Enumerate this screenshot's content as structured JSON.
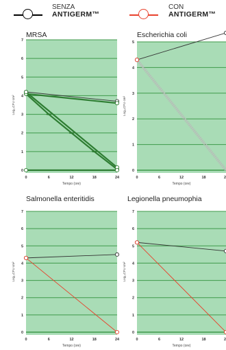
{
  "legend": {
    "without": {
      "line1": "SENZA",
      "line2": "ANTIGERM™",
      "color": "#000000"
    },
    "with": {
      "line1": "CON",
      "line2": "ANTIGERM™",
      "color": "#e8412c"
    }
  },
  "colors": {
    "plot_bg": "#a9dcb6",
    "grid": "#3f9a4a",
    "mrsa_line": "#2e7d32",
    "ecoli_dotted": "#b9b9b9",
    "with": "#e8412c",
    "without": "#333333"
  },
  "chart_data": [
    {
      "type": "line",
      "title": "MRSA",
      "xlabel": "Tempo (ore)",
      "ylabel": "Log₁₀CFU cm²",
      "x_ticks": [
        "0",
        "6",
        "12",
        "18",
        "24"
      ],
      "y_ticks": [
        "0",
        "1",
        "2",
        "3",
        "4",
        "5",
        "6",
        "7"
      ],
      "xlim": [
        0,
        24
      ],
      "ylim": [
        0,
        7
      ],
      "grid": true,
      "series": [
        {
          "style": "without",
          "x": [
            0,
            24
          ],
          "y": [
            4.2,
            3.7
          ]
        },
        {
          "style": "mrsa",
          "x": [
            0,
            24
          ],
          "y": [
            4.1,
            3.6
          ]
        },
        {
          "style": "mrsa",
          "x": [
            0,
            6,
            12,
            18,
            24
          ],
          "y": [
            4.1,
            3.0,
            2.0,
            1.0,
            0.05
          ]
        },
        {
          "style": "mrsa",
          "x": [
            0,
            24
          ],
          "y": [
            4.2,
            0.15
          ]
        },
        {
          "style": "mrsa",
          "x": [
            0,
            24
          ],
          "y": [
            0.0,
            0.0
          ]
        }
      ]
    },
    {
      "type": "line",
      "title": "Escherichia coli",
      "xlabel": "Tempo (ore)",
      "ylabel": "Log₁₀CFU cm²",
      "x_ticks": [
        "0",
        "6",
        "12",
        "18",
        "24"
      ],
      "y_ticks": [
        "0",
        "1",
        "2",
        "3",
        "4",
        "5"
      ],
      "xlim": [
        0,
        24
      ],
      "ylim": [
        0,
        5
      ],
      "grid": true,
      "series": [
        {
          "style": "without",
          "x": [
            0,
            24
          ],
          "y": [
            4.3,
            5.35
          ]
        },
        {
          "style": "ecoli_dotted",
          "x": [
            0,
            24
          ],
          "y": [
            4.3,
            0.0
          ]
        },
        {
          "style": "with",
          "x": [
            0
          ],
          "y": [
            4.3
          ]
        }
      ]
    },
    {
      "type": "line",
      "title": "Salmonella enteritidis",
      "xlabel": "Tempo (ore)",
      "ylabel": "Log₁₀CFU cm²",
      "x_ticks": [
        "0",
        "6",
        "12",
        "18",
        "24"
      ],
      "y_ticks": [
        "0",
        "1",
        "2",
        "3",
        "4",
        "5",
        "6",
        "7"
      ],
      "xlim": [
        0,
        24
      ],
      "ylim": [
        0,
        7
      ],
      "grid": true,
      "series": [
        {
          "style": "without",
          "x": [
            0,
            24
          ],
          "y": [
            4.3,
            4.5
          ]
        },
        {
          "style": "with",
          "x": [
            0,
            24
          ],
          "y": [
            4.3,
            0.0
          ]
        }
      ]
    },
    {
      "type": "line",
      "title": "Legionella pneumophia",
      "xlabel": "Tempo (ore)",
      "ylabel": "Log₁₀CFU cm²",
      "x_ticks": [
        "0",
        "6",
        "12",
        "18",
        "24"
      ],
      "y_ticks": [
        "0",
        "1",
        "2",
        "3",
        "4",
        "5",
        "6",
        "7"
      ],
      "xlim": [
        0,
        24
      ],
      "ylim": [
        0,
        7
      ],
      "grid": true,
      "series": [
        {
          "style": "without",
          "x": [
            0,
            24
          ],
          "y": [
            5.2,
            4.7
          ]
        },
        {
          "style": "with",
          "x": [
            0,
            24
          ],
          "y": [
            5.2,
            0.0
          ]
        }
      ]
    }
  ]
}
